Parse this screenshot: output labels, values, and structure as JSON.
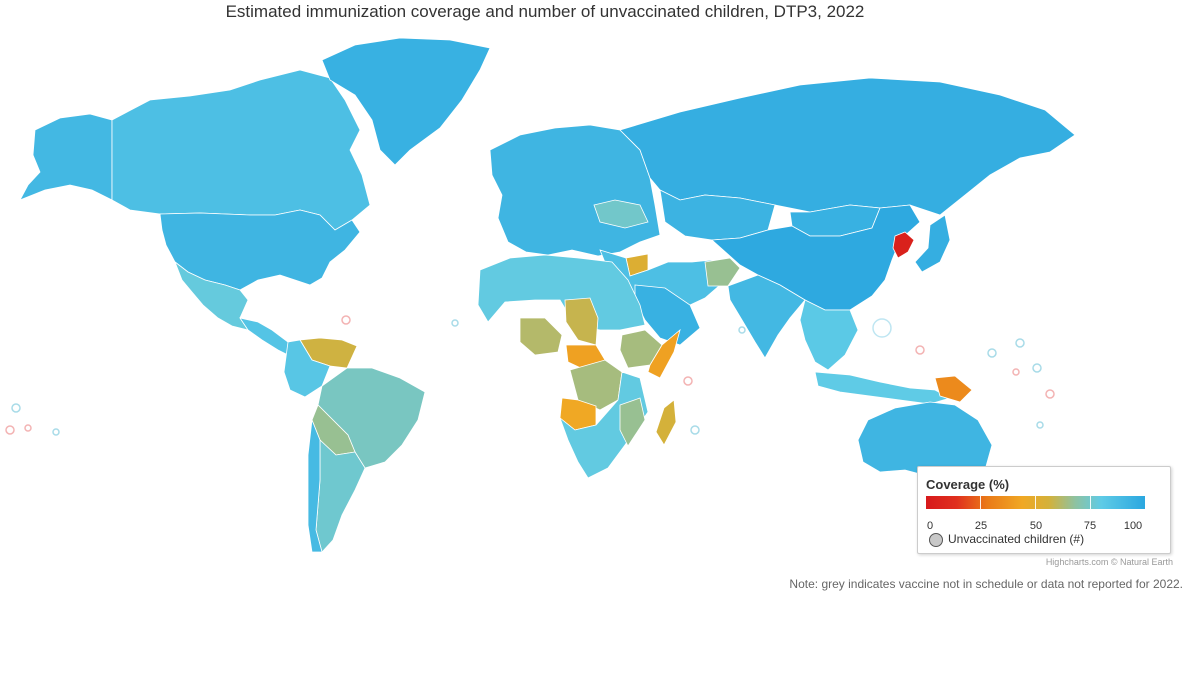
{
  "title": "Estimated immunization coverage and number of unvaccinated children, DTP3, 2022",
  "map": {
    "regions": [
      {
        "name": "Alaska",
        "coverage": 93
      },
      {
        "name": "Canada",
        "coverage": 90
      },
      {
        "name": "Greenland",
        "coverage": 96
      },
      {
        "name": "United States",
        "coverage": 94
      },
      {
        "name": "Mexico",
        "coverage": 83
      },
      {
        "name": "Central America",
        "coverage": 88
      },
      {
        "name": "Venezuela",
        "coverage": 56
      },
      {
        "name": "Colombia",
        "coverage": 87
      },
      {
        "name": "Brazil",
        "coverage": 77
      },
      {
        "name": "Bolivia",
        "coverage": 68
      },
      {
        "name": "Argentina",
        "coverage": 80
      },
      {
        "name": "Chile",
        "coverage": 92
      },
      {
        "name": "Europe",
        "coverage": 94
      },
      {
        "name": "Ukraine",
        "coverage": 79
      },
      {
        "name": "Russia",
        "coverage": 97
      },
      {
        "name": "Kazakhstan",
        "coverage": 95
      },
      {
        "name": "Mongolia",
        "coverage": 96
      },
      {
        "name": "China",
        "coverage": 99
      },
      {
        "name": "North Korea",
        "coverage": 2
      },
      {
        "name": "Japan",
        "coverage": 97
      },
      {
        "name": "Syria",
        "coverage": 52
      },
      {
        "name": "Middle East",
        "coverage": 90
      },
      {
        "name": "Saudi Arabia",
        "coverage": 96
      },
      {
        "name": "Afghanistan",
        "coverage": 68
      },
      {
        "name": "India",
        "coverage": 93
      },
      {
        "name": "Southeast Asia",
        "coverage": 86
      },
      {
        "name": "Indonesia",
        "coverage": 85
      },
      {
        "name": "Papua New Guinea",
        "coverage": 32
      },
      {
        "name": "Australia",
        "coverage": 94
      },
      {
        "name": "New Zealand",
        "coverage": 90
      },
      {
        "name": "North Africa",
        "coverage": 84
      },
      {
        "name": "Chad",
        "coverage": 58
      },
      {
        "name": "Nigeria",
        "coverage": 62
      },
      {
        "name": "Central African Republic",
        "coverage": 42
      },
      {
        "name": "DR Congo",
        "coverage": 65
      },
      {
        "name": "Angola",
        "coverage": 45
      },
      {
        "name": "Ethiopia",
        "coverage": 65
      },
      {
        "name": "Somalia",
        "coverage": 42
      },
      {
        "name": "Southern Africa",
        "coverage": 84
      },
      {
        "name": "Mozambique",
        "coverage": 68
      },
      {
        "name": "Madagascar",
        "coverage": 55
      }
    ]
  },
  "legend": {
    "title": "Coverage (%)",
    "ticks": [
      "0",
      "25",
      "50",
      "75",
      "100"
    ],
    "bubble_label": "Unvaccinated children (#)",
    "scale_colors": [
      "#d7191c",
      "#ea7a18",
      "#f0a824",
      "#d4b13a",
      "#8fc2a0",
      "#5fcbe6",
      "#2aa7e0"
    ]
  },
  "credits": "Highcharts.com © Natural Earth",
  "note": "Note: grey indicates vaccine not in schedule or data not reported for 2022."
}
